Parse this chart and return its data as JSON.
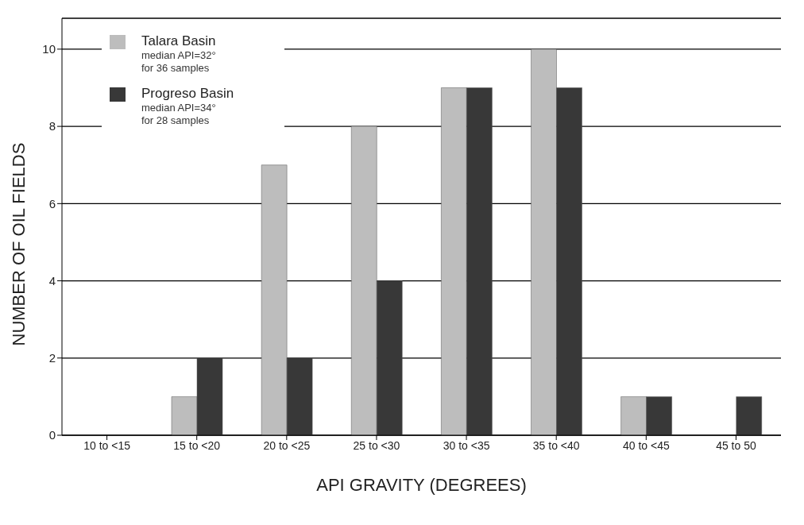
{
  "chart_data": {
    "type": "bar",
    "xlabel": "API GRAVITY (DEGREES)",
    "ylabel": "NUMBER OF OIL FIELDS",
    "categories": [
      "10 to <15",
      "15 to <20",
      "20 to <25",
      "25 to <30",
      "30 to <35",
      "35 to <40",
      "40 to <45",
      "45 to 50"
    ],
    "series": [
      {
        "name": "Talara Basin",
        "color": "#bdbdbd",
        "values": [
          0,
          1,
          7,
          8,
          9,
          10,
          1,
          0
        ]
      },
      {
        "name": "Progreso Basin",
        "color": "#383838",
        "values": [
          0,
          2,
          2,
          4,
          9,
          9,
          1,
          1
        ]
      }
    ],
    "annotations": [
      "median API=32° for 36 samples",
      "median API=34° for 28 samples"
    ],
    "ylim": [
      0,
      10.8
    ],
    "yticks": [
      0,
      2,
      4,
      6,
      8,
      10
    ],
    "grid": "y",
    "legend": "top left"
  }
}
